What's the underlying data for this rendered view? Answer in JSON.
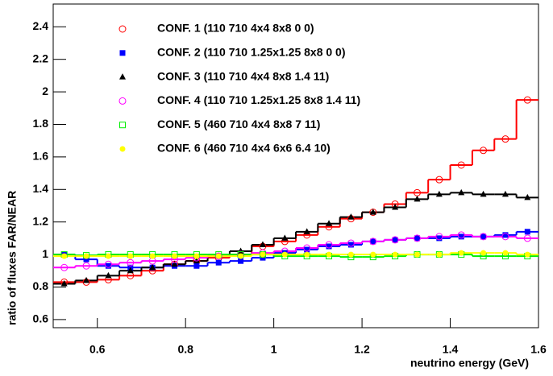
{
  "chart_data": {
    "type": "histogram",
    "xlabel": "neutrino energy  (GeV)",
    "ylabel": "ratio of fluxes FAR/NEAR",
    "bins": [
      0.5,
      0.55,
      0.6,
      0.65,
      0.7,
      0.75,
      0.8,
      0.85,
      0.9,
      0.95,
      1.0,
      1.05,
      1.1,
      1.15,
      1.2,
      1.25,
      1.3,
      1.35,
      1.4,
      1.45,
      1.5,
      1.55,
      1.6
    ],
    "xlim": [
      0.5,
      1.6
    ],
    "xticks": [
      {
        "value": 0.6,
        "label": "0.6"
      },
      {
        "value": 0.8,
        "label": "0.8"
      },
      {
        "value": 1,
        "label": "1"
      },
      {
        "value": 1.2,
        "label": "1.2"
      },
      {
        "value": 1.4,
        "label": "1.4"
      },
      {
        "value": 1.6,
        "label": "1.6"
      }
    ],
    "ylim": [
      0.55,
      2.54
    ],
    "yticks": [
      {
        "value": 0.6,
        "label": "0.6"
      },
      {
        "value": 0.8,
        "label": "0.8"
      },
      {
        "value": 1,
        "label": "1"
      },
      {
        "value": 1.2,
        "label": "1.2"
      },
      {
        "value": 1.4,
        "label": "1.4"
      },
      {
        "value": 1.6,
        "label": "1.6"
      },
      {
        "value": 1.8,
        "label": "1.8"
      },
      {
        "value": 2,
        "label": "2"
      },
      {
        "value": 2.2,
        "label": "2.2"
      },
      {
        "value": 2.4,
        "label": "2.4"
      }
    ],
    "legend": "upper left",
    "series": [
      {
        "name": "CONF. 1 (110 710 4x4 8x8  0 0)",
        "color": "#ff0000",
        "marker": "circle-open",
        "values": [
          0.83,
          0.83,
          0.845,
          0.87,
          0.9,
          0.94,
          0.96,
          0.98,
          1.0,
          1.05,
          1.08,
          1.12,
          1.17,
          1.22,
          1.26,
          1.31,
          1.38,
          1.46,
          1.55,
          1.64,
          1.71,
          1.95
        ]
      },
      {
        "name": "CONF. 2 (110 710 1.25x1.25 8x8 0 0)",
        "color": "#0000ff",
        "marker": "square",
        "values": [
          1.0,
          0.97,
          0.93,
          0.92,
          0.92,
          0.93,
          0.93,
          0.95,
          0.96,
          0.98,
          1.01,
          1.03,
          1.05,
          1.06,
          1.08,
          1.09,
          1.1,
          1.1,
          1.11,
          1.11,
          1.12,
          1.14
        ]
      },
      {
        "name": "CONF. 3 (110 710 4x4 8x8 1.4 11)",
        "color": "#000000",
        "marker": "triangle",
        "values": [
          0.82,
          0.84,
          0.87,
          0.9,
          0.92,
          0.94,
          0.96,
          0.99,
          1.02,
          1.06,
          1.1,
          1.14,
          1.19,
          1.23,
          1.26,
          1.29,
          1.34,
          1.37,
          1.38,
          1.37,
          1.37,
          1.35
        ]
      },
      {
        "name": "CONF. 4 (110 710 1.25x1.25 8x8 1.4 11)",
        "color": "#ff00ff",
        "marker": "circle-open",
        "values": [
          0.92,
          0.93,
          0.94,
          0.95,
          0.96,
          0.97,
          0.98,
          0.99,
          1.0,
          1.01,
          1.02,
          1.04,
          1.06,
          1.07,
          1.08,
          1.09,
          1.1,
          1.11,
          1.12,
          1.11,
          1.11,
          1.1
        ]
      },
      {
        "name": "CONF. 5 (460 710 4x4 8x8 7 11)",
        "color": "#00ee00",
        "marker": "square-open",
        "values": [
          1.0,
          0.995,
          1.0,
          1.0,
          1.0,
          1.0,
          1.0,
          1.0,
          1.0,
          1.0,
          0.99,
          0.99,
          0.99,
          0.985,
          0.985,
          0.99,
          1.0,
          1.0,
          1.0,
          0.99,
          0.99,
          0.99
        ]
      },
      {
        "name": "CONF. 6 (460 710 4x4 6x6 6.4 10)",
        "color": "#ffff00",
        "marker": "circle",
        "values": [
          0.99,
          0.99,
          0.99,
          0.99,
          0.99,
          0.99,
          0.99,
          0.99,
          0.99,
          1.0,
          1.0,
          1.0,
          1.0,
          1.0,
          1.0,
          1.0,
          1.0,
          1.0,
          1.01,
          1.01,
          1.01,
          1.0
        ]
      }
    ]
  }
}
